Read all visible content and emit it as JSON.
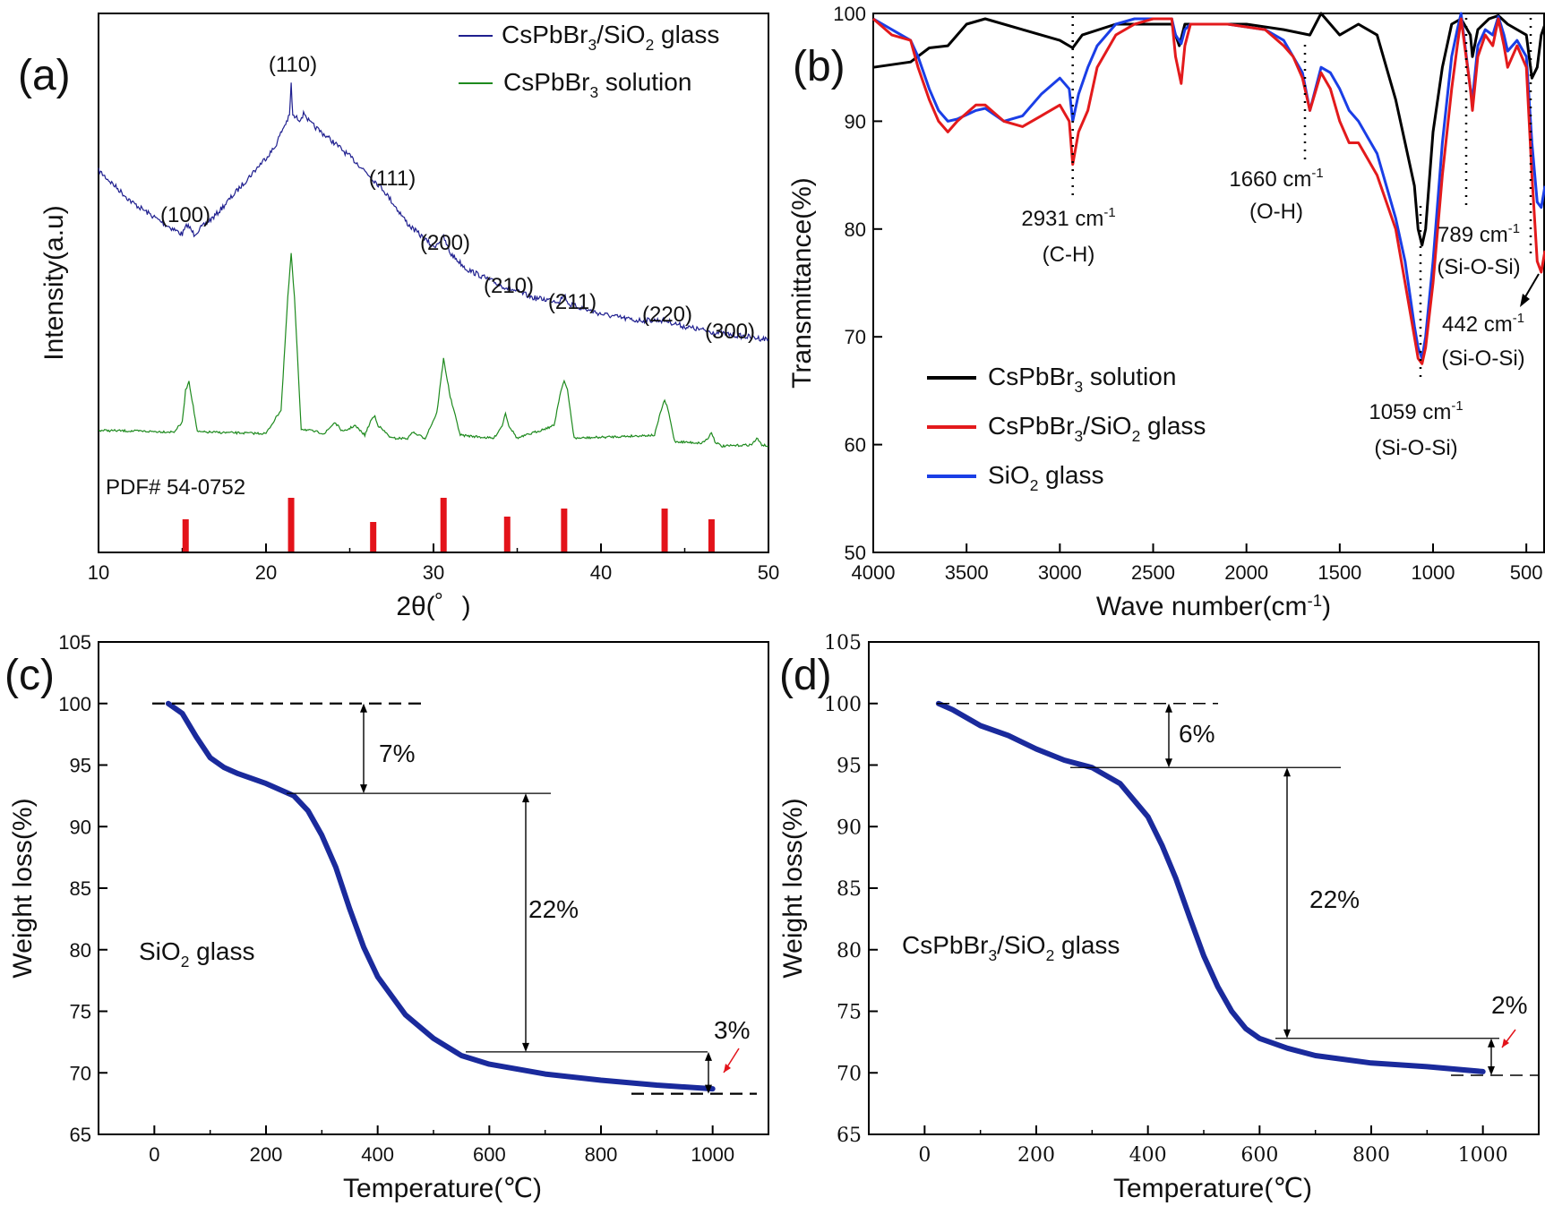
{
  "colors": {
    "xrd_glass": "#1f1f8f",
    "xrd_solution": "#1e8a1e",
    "pdf_bars": "#e3131a",
    "ftir_solution": "#000000",
    "ftir_cspbbr3_glass": "#e31a1c",
    "ftir_sio2_glass": "#1a3ee6",
    "tga_curve": "#1a2a9c"
  },
  "chart_data": [
    {
      "panel": "(a)",
      "type": "line",
      "xlabel": "2θ(゜)",
      "ylabel": "Intensity(a.u)",
      "xlim": [
        10,
        50
      ],
      "xticks": [
        10,
        20,
        30,
        40,
        50
      ],
      "legend": [
        "CsPbBr3/SiO2 glass",
        "CsPbBr3 solution"
      ],
      "legend_position": "top-right",
      "series": [
        {
          "name": "CsPbBr3/SiO2 glass",
          "x": [
            10,
            12,
            14,
            15,
            15.3,
            15.7,
            17,
            19,
            20.5,
            21,
            21.4,
            21.5,
            21.6,
            22,
            22.3,
            22.6,
            24,
            25.5,
            27,
            28.5,
            30,
            30.6,
            31,
            32,
            34,
            36,
            37.5,
            37.8,
            38.1,
            40,
            42,
            43.8,
            45,
            47,
            50
          ],
          "y": [
            11.5,
            10.5,
            9.8,
            9.5,
            9.8,
            9.5,
            10.1,
            11.3,
            12.2,
            12.8,
            13.2,
            14.2,
            13.2,
            13.1,
            13.3,
            13.0,
            12.4,
            11.7,
            10.9,
            9.8,
            9.1,
            9.4,
            8.9,
            8.4,
            7.9,
            7.5,
            7.4,
            7.6,
            7.3,
            7.0,
            6.8,
            6.8,
            6.6,
            6.4,
            6.2
          ]
        },
        {
          "name": "CsPbBr3 solution",
          "x": [
            10,
            14.5,
            15.0,
            15.2,
            15.4,
            15.9,
            20,
            20.9,
            21.3,
            21.5,
            21.7,
            22.1,
            23.5,
            24.1,
            24.6,
            25.3,
            25.9,
            26.3,
            26.5,
            26.7,
            27.5,
            28.5,
            28.7,
            29.5,
            30.2,
            30.6,
            31.0,
            31.6,
            33.6,
            34.1,
            34.3,
            34.5,
            35.0,
            37.2,
            37.6,
            37.8,
            38.0,
            38.4,
            43.2,
            43.6,
            43.8,
            44.0,
            44.4,
            46.0,
            46.4,
            46.6,
            46.8,
            47.2,
            49,
            49.3,
            49.6,
            50
          ],
          "y": [
            3.35,
            3.3,
            3.6,
            4.6,
            4.9,
            3.3,
            3.25,
            4.0,
            7.5,
            8.9,
            7.5,
            3.4,
            3.25,
            3.6,
            3.3,
            3.5,
            3.2,
            3.7,
            3.8,
            3.5,
            3.1,
            3.1,
            3.3,
            3.1,
            3.9,
            5.6,
            4.4,
            3.2,
            3.1,
            3.5,
            3.9,
            3.5,
            3.1,
            3.5,
            4.6,
            4.9,
            4.6,
            3.1,
            3.2,
            4.0,
            4.3,
            4.0,
            3.0,
            2.95,
            3.1,
            3.3,
            3.0,
            2.85,
            2.9,
            3.1,
            2.9,
            2.85
          ]
        }
      ],
      "reference": {
        "label": "PDF# 54-0752",
        "positions": [
          15.2,
          21.5,
          26.4,
          30.6,
          34.4,
          37.8,
          43.8,
          46.6
        ],
        "intensities": [
          0.6,
          1.0,
          0.55,
          1.0,
          0.65,
          0.8,
          0.8,
          0.6
        ]
      },
      "peak_labels": [
        {
          "text": "(100)",
          "x": 15.2
        },
        {
          "text": "(110)",
          "x": 21.5
        },
        {
          "text": "(111)",
          "x": 26.4
        },
        {
          "text": "(200)",
          "x": 30.6
        },
        {
          "text": "(210)",
          "x": 34.4
        },
        {
          "text": "(211)",
          "x": 37.8
        },
        {
          "text": "(220)",
          "x": 43.8
        },
        {
          "text": "(300)",
          "x": 46.6
        }
      ]
    },
    {
      "panel": "(b)",
      "type": "line",
      "xlabel": "Wave number(cm⁻¹)",
      "ylabel": "Transmittance(%)",
      "xlim": [
        4000,
        400
      ],
      "ylim": [
        50,
        100
      ],
      "xticks": [
        4000,
        3500,
        3000,
        2500,
        2000,
        1500,
        1000,
        500
      ],
      "yticks": [
        50,
        60,
        70,
        80,
        90,
        100
      ],
      "legend": [
        "CsPbBr3 solution",
        "CsPbBr3/SiO2 glass",
        "SiO2 glass"
      ],
      "legend_position": "lower-left",
      "series": [
        {
          "name": "CsPbBr3 solution",
          "x": [
            4000,
            3800,
            3700,
            3600,
            3500,
            3400,
            3200,
            3000,
            2931,
            2880,
            2700,
            2400,
            2360,
            2330,
            2200,
            2000,
            1800,
            1660,
            1600,
            1500,
            1400,
            1300,
            1200,
            1150,
            1100,
            1080,
            1059,
            1040,
            1000,
            950,
            900,
            850,
            800,
            789,
            760,
            700,
            650,
            600,
            500,
            470,
            442,
            420,
            400
          ],
          "y": [
            95,
            95.5,
            96.8,
            97,
            99,
            99.5,
            98.5,
            97.5,
            96.8,
            98,
            99,
            99,
            97,
            99,
            99,
            99,
            98.5,
            98,
            100,
            98,
            99,
            98,
            92,
            88,
            84,
            80,
            78.5,
            80,
            89,
            95,
            99,
            99.5,
            98,
            96,
            98.5,
            99.5,
            99.8,
            99,
            98,
            94,
            95,
            98,
            99
          ]
        },
        {
          "name": "CsPbBr3/SiO2 glass",
          "x": [
            4000,
            3900,
            3800,
            3760,
            3700,
            3650,
            3600,
            3550,
            3450,
            3400,
            3300,
            3200,
            3100,
            3000,
            2950,
            2931,
            2900,
            2850,
            2800,
            2700,
            2600,
            2500,
            2400,
            2380,
            2350,
            2330,
            2300,
            2100,
            1900,
            1800,
            1750,
            1700,
            1660,
            1600,
            1550,
            1500,
            1450,
            1400,
            1300,
            1200,
            1150,
            1100,
            1080,
            1059,
            1040,
            1000,
            950,
            900,
            870,
            850,
            800,
            789,
            760,
            720,
            680,
            650,
            620,
            600,
            550,
            500,
            470,
            442,
            420,
            400
          ],
          "y": [
            99.5,
            98,
            97.5,
            95,
            92,
            90,
            89,
            90,
            91.5,
            91.5,
            90,
            89.5,
            90.5,
            91.5,
            90,
            86,
            89,
            91,
            95,
            98,
            99,
            99.5,
            99.5,
            96,
            93.5,
            97,
            99,
            99,
            98.5,
            97,
            96,
            94,
            91,
            94.5,
            93,
            90,
            88,
            88,
            85,
            80,
            75,
            70,
            68,
            67.5,
            69,
            75,
            85,
            93,
            97,
            99.5,
            93,
            91,
            96,
            98,
            97,
            99.5,
            97,
            95,
            97,
            95,
            85,
            77,
            76,
            78
          ]
        },
        {
          "name": "SiO2 glass",
          "x": [
            4000,
            3900,
            3800,
            3760,
            3700,
            3650,
            3600,
            3550,
            3450,
            3400,
            3300,
            3200,
            3100,
            3000,
            2950,
            2931,
            2900,
            2850,
            2800,
            2700,
            2600,
            2500,
            2400,
            2380,
            2350,
            2330,
            2300,
            2100,
            1900,
            1800,
            1750,
            1700,
            1660,
            1600,
            1550,
            1500,
            1450,
            1400,
            1300,
            1200,
            1150,
            1100,
            1080,
            1059,
            1040,
            1000,
            950,
            900,
            870,
            850,
            800,
            789,
            760,
            720,
            680,
            650,
            620,
            600,
            550,
            500,
            470,
            442,
            420,
            400
          ],
          "y": [
            99.5,
            98.5,
            97.5,
            96,
            93,
            91,
            90,
            90.2,
            91,
            91.2,
            90,
            90.5,
            92.5,
            94,
            93,
            90,
            92.5,
            95,
            97,
            99,
            99.5,
            99.5,
            99.5,
            98,
            97.2,
            98.5,
            99,
            99,
            98.5,
            97.5,
            96,
            94.5,
            91,
            95,
            94.5,
            93,
            91,
            90,
            87,
            81,
            77,
            71,
            69,
            68,
            70,
            77,
            88,
            96,
            98.5,
            100,
            93,
            92,
            97,
            98.5,
            98,
            99.7,
            98,
            96.5,
            97.5,
            96,
            88,
            82.5,
            82,
            84
          ]
        }
      ],
      "annotations": [
        {
          "wavenumber": 2931,
          "value": "2931 cm⁻¹",
          "assignment": "(C-H)"
        },
        {
          "wavenumber": 1660,
          "value": "1660 cm⁻¹",
          "assignment": "(O-H)"
        },
        {
          "wavenumber": 1059,
          "value": "1059 cm⁻¹",
          "assignment": "(Si-O-Si)"
        },
        {
          "wavenumber": 789,
          "value": "789 cm⁻¹",
          "assignment": "(Si-O-Si)"
        },
        {
          "wavenumber": 442,
          "value": "442 cm⁻¹",
          "assignment": "(Si-O-Si)"
        }
      ]
    },
    {
      "panel": "(c)",
      "type": "line",
      "xlabel": "Temperature(℃)",
      "ylabel": "Weight loss(%)",
      "xlim": [
        -100,
        1100
      ],
      "ylim": [
        65,
        105
      ],
      "xticks": [
        0,
        200,
        400,
        600,
        800,
        1000
      ],
      "yticks": [
        65,
        70,
        75,
        80,
        85,
        90,
        95,
        100,
        105
      ],
      "sample_label": "SiO2 glass",
      "series": [
        {
          "name": "SiO2 glass",
          "x": [
            25,
            50,
            75,
            100,
            125,
            150,
            200,
            250,
            275,
            300,
            325,
            350,
            375,
            400,
            450,
            500,
            550,
            600,
            700,
            800,
            900,
            1000
          ],
          "y": [
            100,
            99.2,
            97.3,
            95.6,
            94.8,
            94.3,
            93.5,
            92.5,
            91.3,
            89.3,
            86.7,
            83.3,
            80.2,
            77.8,
            74.7,
            72.8,
            71.4,
            70.7,
            69.9,
            69.4,
            69.0,
            68.7
          ]
        }
      ],
      "steps": [
        {
          "label": "7%",
          "from": 100,
          "to": 92.7
        },
        {
          "label": "22%",
          "from": 92.7,
          "to": 71.7
        },
        {
          "label": "3%",
          "from": 71.7,
          "to": 68.3
        }
      ]
    },
    {
      "panel": "(d)",
      "type": "line",
      "xlabel": "Temperature(℃)",
      "ylabel": "Weight loss(%)",
      "xlim": [
        -100,
        1100
      ],
      "ylim": [
        65,
        105
      ],
      "xticks": [
        0,
        200,
        400,
        600,
        800,
        1000
      ],
      "yticks": [
        65,
        70,
        75,
        80,
        85,
        90,
        95,
        100,
        105
      ],
      "sample_label": "CsPbBr3/SiO2 glass",
      "series": [
        {
          "name": "CsPbBr3/SiO2 glass",
          "x": [
            25,
            50,
            100,
            150,
            200,
            250,
            300,
            350,
            400,
            425,
            450,
            475,
            500,
            525,
            550,
            575,
            600,
            650,
            700,
            800,
            900,
            1000
          ],
          "y": [
            100,
            99.5,
            98.2,
            97.4,
            96.3,
            95.4,
            94.8,
            93.5,
            90.8,
            88.5,
            85.8,
            82.6,
            79.5,
            77.0,
            75.0,
            73.6,
            72.8,
            72.0,
            71.4,
            70.8,
            70.5,
            70.1
          ]
        }
      ],
      "steps": [
        {
          "label": "6%",
          "from": 100,
          "to": 94.8
        },
        {
          "label": "22%",
          "from": 94.8,
          "to": 72.8
        },
        {
          "label": "2%",
          "from": 72.8,
          "to": 69.8
        }
      ]
    }
  ]
}
